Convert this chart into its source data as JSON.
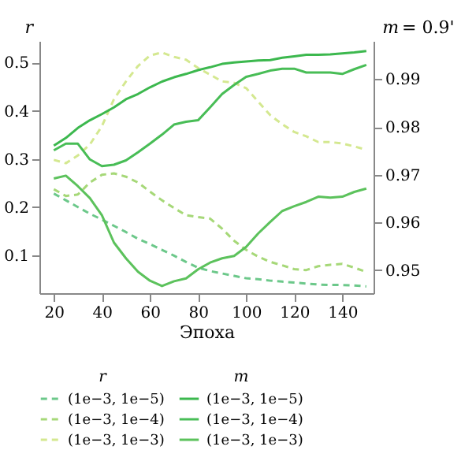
{
  "chart_data": {
    "type": "line",
    "xlabel": "Эпоха",
    "ylabel": "r",
    "y2label": "m",
    "x": [
      20,
      25,
      30,
      35,
      40,
      45,
      50,
      55,
      60,
      65,
      70,
      75,
      80,
      85,
      90,
      95,
      100,
      105,
      110,
      115,
      120,
      125,
      130,
      135,
      140,
      145,
      150
    ],
    "xlim": [
      14,
      153
    ],
    "xticks": [
      20,
      40,
      60,
      80,
      100,
      120,
      140
    ],
    "ylim": [
      0.021,
      0.545
    ],
    "yticks": [
      0.1,
      0.2,
      0.3,
      0.4,
      0.5
    ],
    "y2lim": [
      0.9452,
      0.998
    ],
    "y2ticks": [
      0.95,
      0.96,
      0.97,
      0.98,
      0.99
    ],
    "annotations": [
      "= 0.9'"
    ],
    "grid": false,
    "legend": "bottom",
    "marker": "none",
    "series": [
      {
        "name": "(1e−3, 1e−5)",
        "color": "#6cc88a",
        "line_style": "dashed",
        "values": [
          0.228,
          0.214,
          0.2,
          0.186,
          0.174,
          0.161,
          0.148,
          0.134,
          0.123,
          0.111,
          0.099,
          0.086,
          0.074,
          0.067,
          0.062,
          0.057,
          0.052,
          0.05,
          0.047,
          0.045,
          0.043,
          0.041,
          0.039,
          0.038,
          0.038,
          0.037,
          0.035
        ]
      },
      {
        "name": "(1e−3, 1e−4)",
        "color": "#a6d878",
        "line_style": "dashed",
        "values": [
          0.237,
          0.223,
          0.226,
          0.251,
          0.267,
          0.27,
          0.263,
          0.251,
          0.232,
          0.214,
          0.198,
          0.183,
          0.179,
          0.176,
          0.155,
          0.13,
          0.111,
          0.097,
          0.086,
          0.079,
          0.071,
          0.069,
          0.077,
          0.08,
          0.082,
          0.074,
          0.065
        ]
      },
      {
        "name": "(1e−3, 1e−3)",
        "color": "#d4e890",
        "line_style": "dashed",
        "values": [
          0.298,
          0.291,
          0.307,
          0.33,
          0.368,
          0.424,
          0.461,
          0.493,
          0.515,
          0.521,
          0.512,
          0.506,
          0.489,
          0.475,
          0.461,
          0.458,
          0.447,
          0.419,
          0.391,
          0.372,
          0.356,
          0.347,
          0.335,
          0.335,
          0.332,
          0.326,
          0.319
        ]
      },
      {
        "name": "(1e−3, 1e−5)",
        "color": "#3cb84e",
        "line_style": "solid",
        "axis": "y2",
        "values": [
          0.9761,
          0.9777,
          0.9798,
          0.9814,
          0.9827,
          0.9841,
          0.9858,
          0.9869,
          0.9883,
          0.9895,
          0.9904,
          0.9911,
          0.9919,
          0.9925,
          0.9932,
          0.9935,
          0.9937,
          0.9939,
          0.994,
          0.9945,
          0.9948,
          0.9951,
          0.9951,
          0.9952,
          0.9954,
          0.9956,
          0.9959
        ]
      },
      {
        "name": "(1e−3, 1e−4)",
        "color": "#48bd56",
        "line_style": "solid",
        "axis": "y2",
        "values": [
          0.9751,
          0.9765,
          0.9765,
          0.9732,
          0.9718,
          0.9721,
          0.973,
          0.9747,
          0.9765,
          0.9784,
          0.9805,
          0.9811,
          0.9814,
          0.9841,
          0.9869,
          0.9888,
          0.9905,
          0.9911,
          0.9918,
          0.9922,
          0.9922,
          0.9914,
          0.9914,
          0.9914,
          0.9911,
          0.9921,
          0.993
        ]
      },
      {
        "name": "(1e−3, 1e−3)",
        "color": "#5cc25c",
        "line_style": "solid",
        "axis": "y2",
        "values": [
          0.9692,
          0.9698,
          0.9676,
          0.9651,
          0.9615,
          0.9558,
          0.9525,
          0.9497,
          0.9478,
          0.9467,
          0.9477,
          0.9483,
          0.9502,
          0.9516,
          0.9525,
          0.953,
          0.9549,
          0.9577,
          0.9601,
          0.9624,
          0.9634,
          0.9643,
          0.9654,
          0.9652,
          0.9654,
          0.9664,
          0.9671
        ]
      }
    ]
  }
}
